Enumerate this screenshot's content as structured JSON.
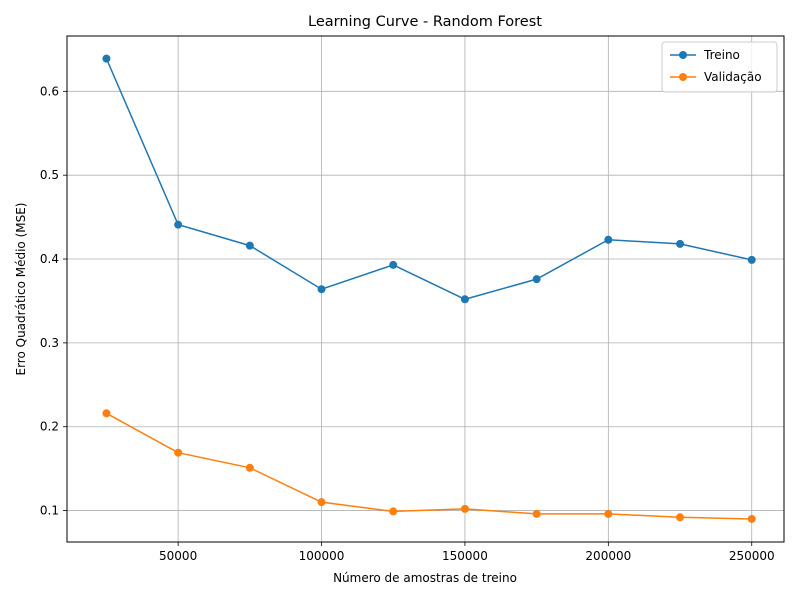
{
  "chart_data": {
    "type": "line",
    "title": "Learning Curve - Random Forest",
    "xlabel": "Número de amostras de treino",
    "ylabel": "Erro Quadrático Médio (MSE)",
    "xlim": [
      11250,
      261250
    ],
    "ylim": [
      0.0625,
      0.666
    ],
    "xticks": [
      50000,
      100000,
      150000,
      200000,
      250000
    ],
    "yticks": [
      0.1,
      0.2,
      0.3,
      0.4,
      0.5,
      0.6
    ],
    "grid": true,
    "legend_position": "top-right",
    "x": [
      25000,
      50000,
      75000,
      100000,
      125000,
      150000,
      175000,
      200000,
      225000,
      250000
    ],
    "series": [
      {
        "name": "Treino",
        "color": "#1f77b4",
        "values": [
          0.639,
          0.441,
          0.416,
          0.364,
          0.393,
          0.352,
          0.376,
          0.423,
          0.418,
          0.399
        ]
      },
      {
        "name": "Validação",
        "color": "#ff7f0e",
        "values": [
          0.216,
          0.169,
          0.151,
          0.11,
          0.099,
          0.102,
          0.096,
          0.096,
          0.092,
          0.09
        ]
      }
    ]
  }
}
